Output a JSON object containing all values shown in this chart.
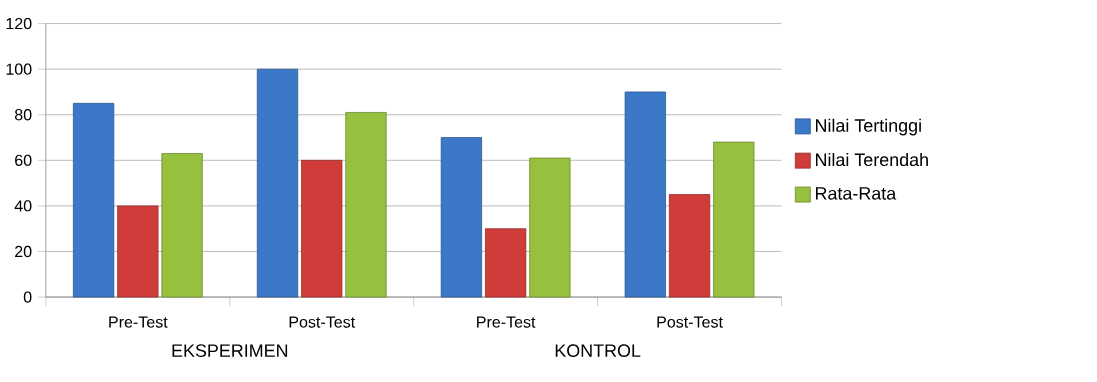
{
  "chart_data": {
    "type": "bar",
    "categories": [
      "Pre-Test",
      "Post-Test",
      "Pre-Test",
      "Post-Test"
    ],
    "series": [
      {
        "name": "Nilai Tertinggi",
        "color": "#3b78c8",
        "values": [
          85,
          100,
          70,
          90
        ]
      },
      {
        "name": "Nilai Terendah",
        "color": "#d03c3a",
        "values": [
          40,
          60,
          30,
          45
        ]
      },
      {
        "name": "Rata-Rata",
        "color": "#96c03e",
        "values": [
          63,
          81,
          61,
          68
        ]
      }
    ],
    "ylim": [
      0,
      120
    ],
    "yticks": [
      0,
      20,
      40,
      60,
      80,
      100,
      120
    ],
    "grid": "y",
    "legend": "right",
    "annotations": [
      "EKSPERIMEN",
      "KONTROL"
    ]
  }
}
